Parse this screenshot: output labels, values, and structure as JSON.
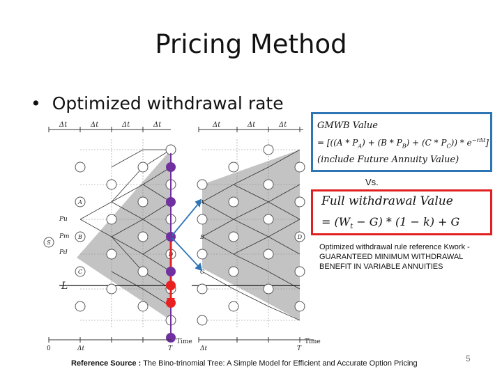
{
  "slide": {
    "title": "Pricing Method",
    "bullet": "Optimized withdrawal rate",
    "gmwb": {
      "line1": "GMWB Value",
      "line2": "= [((A * P",
      "line3": "(include Future Annuity Value)",
      "full_line2": "= [((A * P_A) + (B * P_B) + (C * P_C)) * e^(-rΔt)]"
    },
    "vs": "Vs.",
    "full_withdrawal": {
      "line1": "Full withdrawal Value",
      "line2": "= (W",
      "line2_rest": " − G) * (1 − k) + G",
      "sub_t": "t"
    },
    "note": "Optimized withdrawal rule reference Kwork - GUARANTEED MINIMUM WITHDRAWAL BENEFIT IN VARIABLE ANNUITIES",
    "reference_label": "Reference Source :",
    "reference_text": " The Bino-trinomial Tree:  A Simple Model for Efficient and Accurate Option Pricing",
    "page_number": "5"
  },
  "diagram": {
    "dt_label": "Δt",
    "time_label": "Time",
    "zero_label": "0",
    "T_label": "T",
    "node_labels_left": [
      "A",
      "B",
      "C",
      "D"
    ],
    "node_labels_right": [
      "A",
      "B",
      "C",
      "D"
    ],
    "S_label": "S",
    "L_label": "L",
    "Pu_label": "Pu",
    "Pm_label": "Pm",
    "Pd_label": "Pd",
    "colors": {
      "shade": "#bdbdbd",
      "purple": "#7030a0",
      "red": "#e82020",
      "arrow_blue": "#2e75b6"
    }
  }
}
